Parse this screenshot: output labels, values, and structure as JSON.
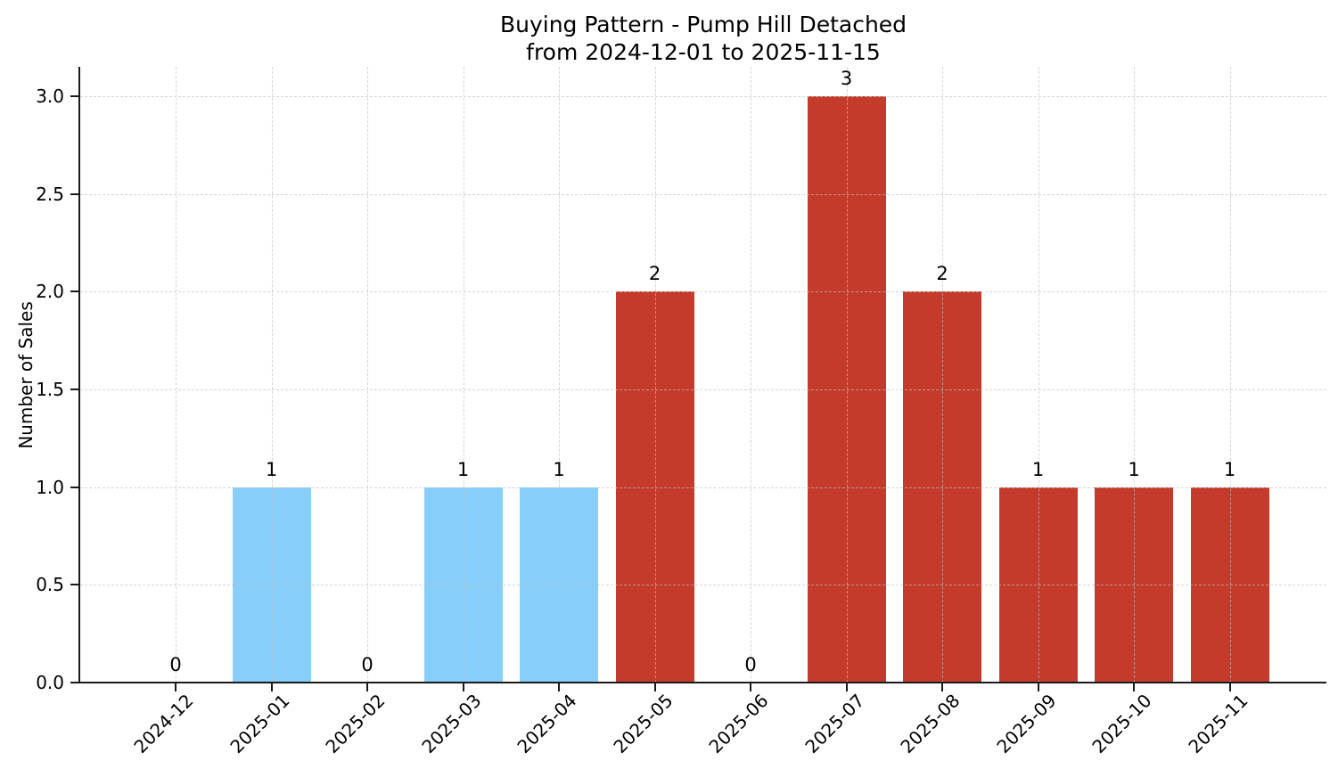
{
  "chart_data": {
    "type": "bar",
    "title": "Buying Pattern - Pump Hill Detached",
    "subtitle": "from 2024-12-01 to 2025-11-15",
    "xlabel": "",
    "ylabel": "Number of Sales",
    "categories": [
      "2024-12",
      "2025-01",
      "2025-02",
      "2025-03",
      "2025-04",
      "2025-05",
      "2025-06",
      "2025-07",
      "2025-08",
      "2025-09",
      "2025-10",
      "2025-11"
    ],
    "values": [
      0,
      1,
      0,
      1,
      1,
      2,
      0,
      3,
      2,
      1,
      1,
      1
    ],
    "value_labels": [
      "0",
      "1",
      "0",
      "1",
      "1",
      "2",
      "0",
      "3",
      "2",
      "1",
      "1",
      "1"
    ],
    "bar_colors": [
      null,
      "#87CEFA",
      null,
      "#87CEFA",
      "#87CEFA",
      "#C43B2C",
      null,
      "#C43B2C",
      "#C43B2C",
      "#C43B2C",
      "#C43B2C",
      "#C43B2C"
    ],
    "y_ticks": [
      "0.0",
      "0.5",
      "1.0",
      "1.5",
      "2.0",
      "2.5",
      "3.0"
    ],
    "y_tick_values": [
      0,
      0.5,
      1,
      1.5,
      2,
      2.5,
      3
    ],
    "ylim": [
      0,
      3.15
    ],
    "grid": "dashed, horizontal and vertical",
    "legend": null
  },
  "colors": {
    "bar_blue": "#87CEFA",
    "bar_red": "#C43B2C",
    "grid": "#BEBEBE",
    "axis": "#1A1A1A",
    "text": "#000000",
    "background": "#FFFFFF"
  }
}
